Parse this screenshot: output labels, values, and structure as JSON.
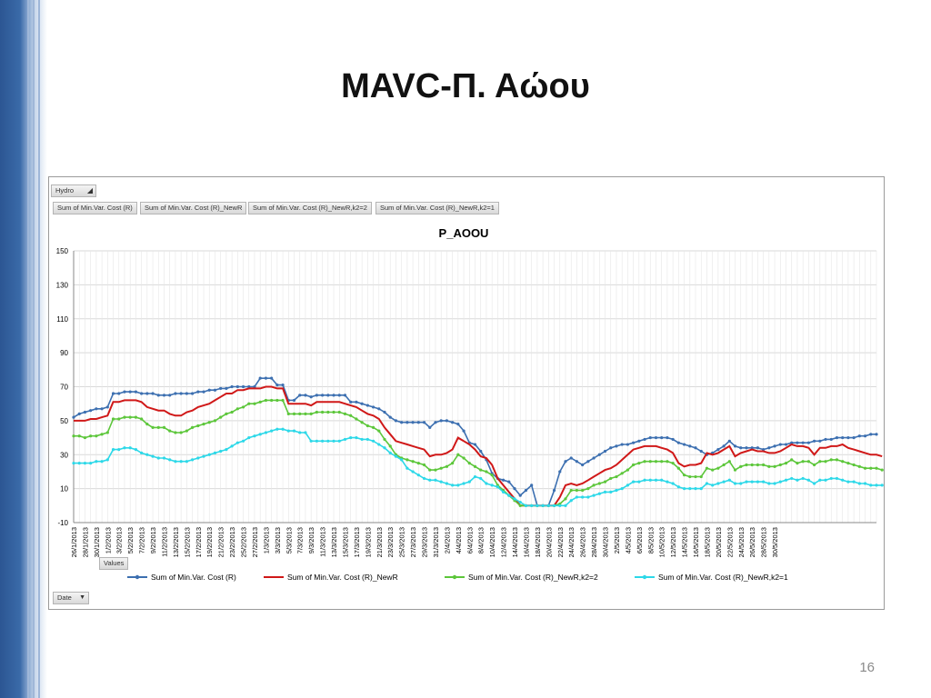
{
  "slide": {
    "title": "MAVC-Π. Αώου",
    "page_number": "16"
  },
  "pivot": {
    "filter_label": "Hydro",
    "field_buttons": [
      "Sum of Min.Var. Cost (R)",
      "Sum of Min.Var. Cost (R)_NewR",
      "Sum of Min.Var. Cost (R)_NewR,k2=2",
      "Sum of Min.Var. Cost (R)_NewR,k2=1"
    ],
    "values_label": "Values",
    "axis_field_label": "Date"
  },
  "colors": {
    "series1": "#3c6fb0",
    "series2": "#d01818",
    "series3": "#5cc63a",
    "series4": "#2cd8e8",
    "side_dark": "#2c5693"
  },
  "chart_data": {
    "type": "line",
    "title": "P_AOOU",
    "ylim": [
      -10,
      150
    ],
    "yticks": [
      -10,
      10,
      30,
      50,
      70,
      90,
      110,
      130,
      150
    ],
    "grid": true,
    "legend_position": "bottom",
    "x_tick_labels": [
      "26/1/2013",
      "28/1/2013",
      "30/1/2013",
      "1/2/2013",
      "3/2/2013",
      "5/2/2013",
      "7/2/2013",
      "9/2/2013",
      "11/2/2013",
      "13/2/2013",
      "15/2/2013",
      "17/2/2013",
      "19/2/2013",
      "21/2/2013",
      "23/2/2013",
      "25/2/2013",
      "27/2/2013",
      "1/3/2013",
      "3/3/2013",
      "5/3/2013",
      "7/3/2013",
      "9/3/2013",
      "11/3/2013",
      "13/3/2013",
      "15/3/2013",
      "17/3/2013",
      "19/3/2013",
      "21/3/2013",
      "23/3/2013",
      "25/3/2013",
      "27/3/2013",
      "29/3/2013",
      "31/3/2013",
      "2/4/2013",
      "4/4/2013",
      "6/4/2013",
      "8/4/2013",
      "10/4/2013",
      "12/4/2013",
      "14/4/2013",
      "16/4/2013",
      "18/4/2013",
      "20/4/2013",
      "22/4/2013",
      "24/4/2013",
      "26/4/2013",
      "28/4/2013",
      "30/4/2013",
      "2/5/2013",
      "4/5/2013",
      "6/5/2013",
      "8/5/2013",
      "10/5/2013",
      "12/5/2013",
      "14/5/2013",
      "16/5/2013",
      "18/5/2013",
      "20/5/2013",
      "22/5/2013",
      "24/5/2013",
      "26/5/2013",
      "28/5/2013",
      "30/5/2013"
    ],
    "series": [
      {
        "name": "Sum of Min.Var. Cost (R)",
        "color": "#3c6fb0",
        "values": [
          52,
          54,
          55,
          56,
          57,
          57,
          58,
          66,
          66,
          67,
          67,
          67,
          66,
          66,
          66,
          65,
          65,
          65,
          66,
          66,
          66,
          66,
          67,
          67,
          68,
          68,
          69,
          69,
          70,
          70,
          70,
          70,
          70,
          75,
          75,
          75,
          71,
          71,
          62,
          62,
          65,
          65,
          64,
          65,
          65,
          65,
          65,
          65,
          65,
          61,
          61,
          60,
          59,
          58,
          57,
          55,
          52,
          50,
          49,
          49,
          49,
          49,
          49,
          46,
          49,
          50,
          50,
          49,
          48,
          44,
          37,
          36,
          32,
          27,
          19,
          16,
          15,
          14,
          10,
          6,
          9,
          12,
          0,
          0,
          0,
          9,
          20,
          26,
          28,
          26,
          24,
          26,
          28,
          30,
          32,
          34,
          35,
          36,
          36,
          37,
          38,
          39,
          40,
          40,
          40,
          40,
          39,
          37,
          36,
          35,
          34,
          32,
          30,
          31,
          33,
          35,
          38,
          35,
          34,
          34,
          34,
          34,
          33,
          34,
          35,
          36,
          36,
          37,
          37,
          37,
          37,
          38,
          38,
          39,
          39,
          40,
          40,
          40,
          40,
          41,
          41,
          42,
          42
        ]
      },
      {
        "name": "Sum of Min.Var. Cost (R)_NewR",
        "color": "#d01818",
        "values": [
          50,
          50,
          50,
          51,
          51,
          52,
          53,
          61,
          61,
          62,
          62,
          62,
          61,
          58,
          57,
          56,
          56,
          54,
          53,
          53,
          55,
          56,
          58,
          59,
          60,
          62,
          64,
          66,
          66,
          68,
          68,
          69,
          69,
          69,
          70,
          70,
          69,
          69,
          60,
          60,
          60,
          60,
          59,
          61,
          61,
          61,
          61,
          61,
          60,
          59,
          58,
          56,
          54,
          53,
          51,
          46,
          42,
          38,
          37,
          36,
          35,
          34,
          33,
          29,
          30,
          30,
          31,
          33,
          40,
          38,
          36,
          33,
          29,
          28,
          24,
          16,
          12,
          8,
          4,
          0,
          0,
          0,
          0,
          0,
          0,
          0,
          5,
          12,
          13,
          12,
          13,
          15,
          17,
          19,
          21,
          22,
          24,
          27,
          30,
          33,
          34,
          35,
          35,
          35,
          34,
          33,
          31,
          25,
          23,
          24,
          24,
          25,
          31,
          30,
          31,
          33,
          35,
          29,
          31,
          32,
          33,
          32,
          32,
          31,
          31,
          32,
          34,
          36,
          35,
          35,
          34,
          30,
          34,
          34,
          35,
          35,
          36,
          34,
          33,
          32,
          31,
          30,
          30,
          29
        ]
      },
      {
        "name": "Sum of Min.Var. Cost (R)_NewR,k2=2",
        "color": "#5cc63a",
        "values": [
          41,
          41,
          40,
          41,
          41,
          42,
          43,
          51,
          51,
          52,
          52,
          52,
          51,
          48,
          46,
          46,
          46,
          44,
          43,
          43,
          44,
          46,
          47,
          48,
          49,
          50,
          52,
          54,
          55,
          57,
          58,
          60,
          60,
          61,
          62,
          62,
          62,
          62,
          54,
          54,
          54,
          54,
          54,
          55,
          55,
          55,
          55,
          55,
          54,
          53,
          51,
          49,
          47,
          46,
          44,
          39,
          35,
          30,
          28,
          27,
          26,
          25,
          24,
          21,
          21,
          22,
          23,
          25,
          30,
          28,
          25,
          23,
          21,
          20,
          18,
          12,
          9,
          6,
          3,
          0,
          0,
          0,
          0,
          0,
          0,
          0,
          1,
          4,
          9,
          9,
          9,
          10,
          12,
          13,
          14,
          16,
          17,
          19,
          21,
          24,
          25,
          26,
          26,
          26,
          26,
          26,
          25,
          22,
          18,
          17,
          17,
          17,
          22,
          21,
          22,
          24,
          26,
          21,
          23,
          24,
          24,
          24,
          24,
          23,
          23,
          24,
          25,
          27,
          25,
          26,
          26,
          24,
          26,
          26,
          27,
          27,
          26,
          25,
          24,
          23,
          22,
          22,
          22,
          21
        ]
      },
      {
        "name": "Sum of Min.Var. Cost (R)_NewR,k2=1",
        "color": "#2cd8e8",
        "values": [
          25,
          25,
          25,
          25,
          26,
          26,
          27,
          33,
          33,
          34,
          34,
          33,
          31,
          30,
          29,
          28,
          28,
          27,
          26,
          26,
          26,
          27,
          28,
          29,
          30,
          31,
          32,
          33,
          35,
          37,
          38,
          40,
          41,
          42,
          43,
          44,
          45,
          45,
          44,
          44,
          43,
          43,
          38,
          38,
          38,
          38,
          38,
          38,
          39,
          40,
          40,
          39,
          39,
          38,
          36,
          34,
          31,
          29,
          27,
          22,
          20,
          18,
          16,
          15,
          15,
          14,
          13,
          12,
          12,
          13,
          14,
          17,
          16,
          13,
          12,
          11,
          8,
          6,
          4,
          2,
          0,
          0,
          0,
          0,
          0,
          0,
          0,
          0,
          3,
          5,
          5,
          5,
          6,
          7,
          8,
          8,
          9,
          10,
          12,
          14,
          14,
          15,
          15,
          15,
          15,
          14,
          13,
          11,
          10,
          10,
          10,
          10,
          13,
          12,
          13,
          14,
          15,
          13,
          13,
          14,
          14,
          14,
          14,
          13,
          13,
          14,
          15,
          16,
          15,
          16,
          15,
          13,
          15,
          15,
          16,
          16,
          15,
          14,
          14,
          13,
          13,
          12,
          12,
          12
        ]
      }
    ]
  }
}
